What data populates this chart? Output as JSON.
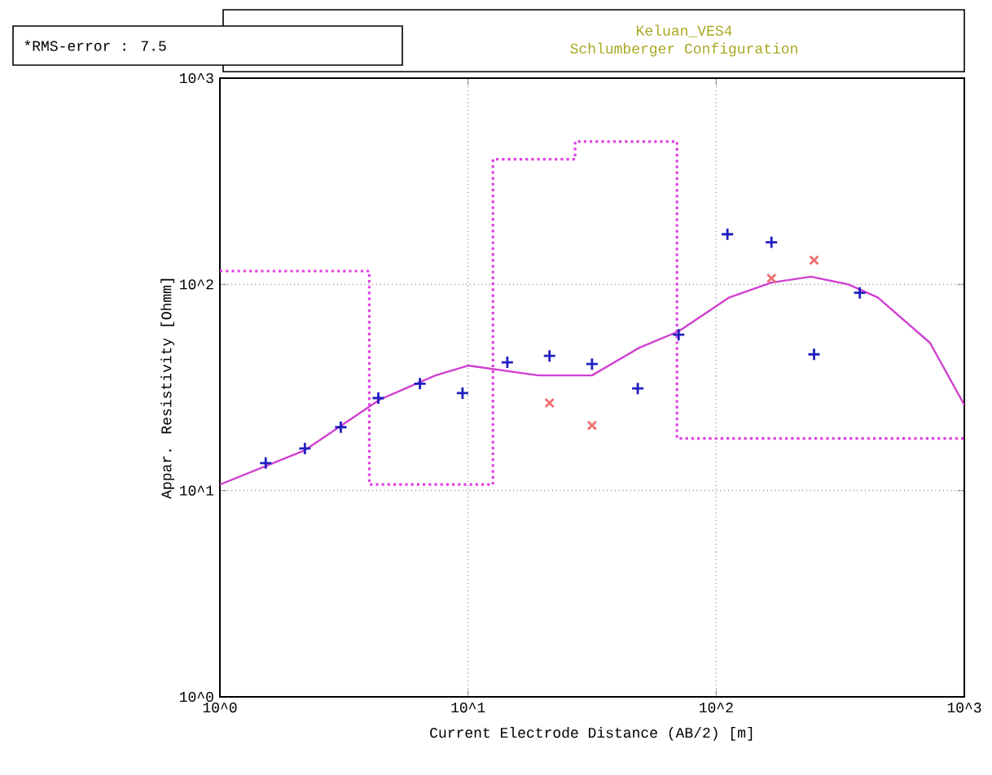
{
  "chart_data": {
    "type": "scatter",
    "title": "Keluan_VES4",
    "subtitle": "Schlumberger Configuration",
    "annotations": [
      "*RMS-error :   7.5"
    ],
    "xlabel": "Current Electrode Distance (AB/2) [m]",
    "ylabel": "Appar. Resistivity [Ohmm]",
    "log": "xy",
    "grid": true,
    "xlim": [
      1,
      1000
    ],
    "ylim": [
      1,
      1000
    ],
    "xticks": [
      {
        "value": 1,
        "label": "10^0"
      },
      {
        "value": 10,
        "label": "10^1"
      },
      {
        "value": 100,
        "label": "10^2"
      },
      {
        "value": 1000,
        "label": "10^3"
      }
    ],
    "yticks": [
      {
        "value": 1,
        "label": "10^0"
      },
      {
        "value": 10,
        "label": "10^1"
      },
      {
        "value": 100,
        "label": "10^2"
      },
      {
        "value": 1000,
        "label": "10^3"
      }
    ],
    "series": [
      {
        "type": "step",
        "color": "#e040e0",
        "line_style": "dotted",
        "x": [
          1,
          4.0,
          12.6,
          27,
          69.5,
          1000
        ],
        "values": [
          116,
          10.7,
          404,
          493,
          17.9,
          17.9
        ]
      },
      {
        "type": "line",
        "color": "#d040d0",
        "line_style": "solid",
        "x": [
          1,
          2.2,
          4.4,
          7.4,
          10,
          19.2,
          31.6,
          49,
          70.6,
          113,
          167,
          241,
          341,
          448,
          728,
          1000
        ],
        "values": [
          10.7,
          15.7,
          27.6,
          36.2,
          40.4,
          36.2,
          36.2,
          49.3,
          59.2,
          86.5,
          102,
          109,
          100,
          86.5,
          52,
          26
        ]
      },
      {
        "color": "#f07070",
        "marker": "cross",
        "x": [
          21.3,
          31.6,
          167,
          248
        ],
        "values": [
          26.6,
          20.7,
          107,
          131
        ]
      },
      {
        "color": "#2020c0",
        "marker": "plus",
        "x": [
          1.53,
          2.2,
          3.07,
          4.35,
          6.4,
          9.5,
          14.4,
          21.3,
          31.6,
          48.3,
          70.6,
          111,
          167,
          248,
          379
        ],
        "values": [
          13.6,
          16,
          20.3,
          28.1,
          33,
          29.7,
          41.9,
          45,
          41.1,
          31.3,
          57,
          175,
          160,
          45.8,
          91
        ]
      }
    ]
  }
}
